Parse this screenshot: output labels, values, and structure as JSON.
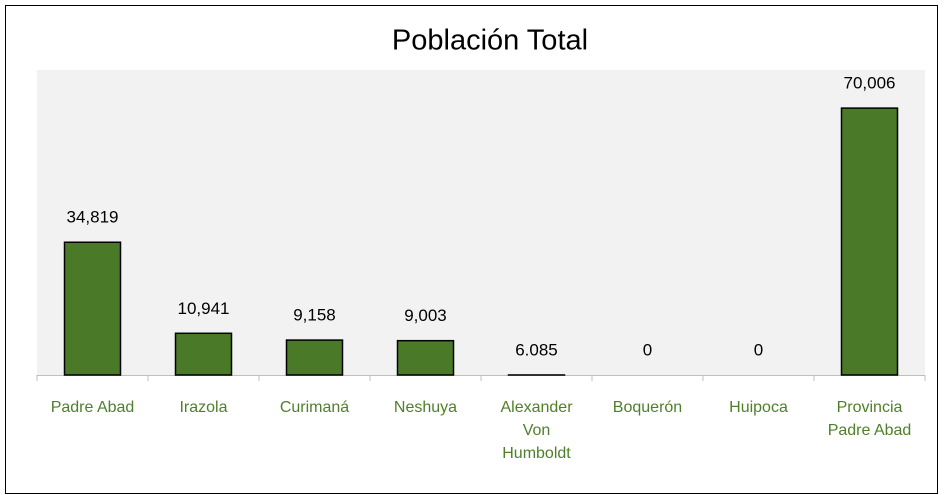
{
  "chart_data": {
    "type": "bar",
    "title": "Población Total",
    "categories": [
      "Padre Abad",
      "Irazola",
      "Curimaná",
      "Neshuya",
      "Alexander Von Humboldt",
      "Boquerón",
      "Huipoca",
      "Provincia Padre Abad"
    ],
    "values": [
      34819,
      10941,
      9158,
      9003,
      6.085,
      0,
      0,
      70006
    ],
    "value_labels": [
      "34,819",
      "10,941",
      "9,158",
      "9,003",
      "6.085",
      "0",
      "0",
      "70,006"
    ],
    "color": "#4a7a28",
    "ylim": [
      0,
      80000
    ]
  }
}
